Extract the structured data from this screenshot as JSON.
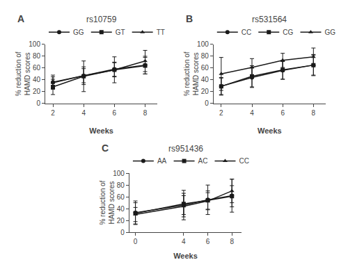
{
  "chart_data": [
    {
      "type": "line",
      "title": "rs10759",
      "annotations": [
        "A"
      ],
      "xlabel": "Weeks",
      "ylabel": "% reduction of\nHAMD scores",
      "x": [
        2,
        4,
        6,
        8
      ],
      "series": [
        {
          "name": "GG",
          "marker": "circle",
          "color": "#1a1a1a",
          "values": [
            36,
            47,
            58,
            65
          ],
          "yerr": [
            12,
            15,
            12,
            15
          ]
        },
        {
          "name": "GT",
          "marker": "square",
          "color": "#1a1a1a",
          "values": [
            28,
            46,
            57,
            64
          ],
          "yerr": [
            13,
            26,
            12,
            14
          ]
        },
        {
          "name": "TT",
          "marker": "triangle",
          "color": "#1a1a1a",
          "values": [
            35,
            47,
            57,
            72
          ],
          "yerr": [
            10,
            12,
            22,
            18
          ]
        }
      ],
      "xlim": [
        1.5,
        8.8
      ],
      "xticks": [
        2,
        4,
        6,
        8
      ],
      "ylim": [
        0,
        100
      ],
      "yticks": [
        0,
        20,
        40,
        60,
        80,
        100
      ],
      "grid": false,
      "legend": "upper left"
    },
    {
      "type": "line",
      "title": "rs531564",
      "annotations": [
        "B"
      ],
      "xlabel": "Weeks",
      "ylabel": "% reduction of\nHAMD scores",
      "x": [
        2,
        4,
        6,
        8
      ],
      "series": [
        {
          "name": "CC",
          "marker": "circle",
          "color": "#1a1a1a",
          "values": [
            29,
            44,
            56,
            65
          ],
          "yerr": [
            14,
            17,
            15,
            18
          ]
        },
        {
          "name": "CG",
          "marker": "square",
          "color": "#1a1a1a",
          "values": [
            29,
            46,
            57,
            65
          ],
          "yerr": [
            15,
            18,
            16,
            17
          ]
        },
        {
          "name": "GG",
          "marker": "triangle",
          "color": "#1a1a1a",
          "values": [
            50,
            61,
            73,
            79
          ],
          "yerr": [
            28,
            15,
            12,
            15
          ]
        }
      ],
      "xlim": [
        1.5,
        8.8
      ],
      "xticks": [
        2,
        4,
        6,
        8
      ],
      "ylim": [
        0,
        100
      ],
      "yticks": [
        0,
        20,
        40,
        60,
        80,
        100
      ],
      "grid": false,
      "legend": "upper left"
    },
    {
      "type": "line",
      "title": "rs951436",
      "annotations": [
        "C"
      ],
      "xlabel": "Weeks",
      "ylabel": "% reduction of\nHAMD scores",
      "x": [
        0,
        4,
        6,
        8
      ],
      "series": [
        {
          "name": "AA",
          "marker": "circle",
          "color": "#1a1a1a",
          "values": [
            33,
            46,
            55,
            62
          ],
          "yerr": [
            20,
            25,
            25,
            28
          ]
        },
        {
          "name": "AC",
          "marker": "square",
          "color": "#1a1a1a",
          "values": [
            32,
            48,
            54,
            61
          ],
          "yerr": [
            18,
            18,
            16,
            18
          ]
        },
        {
          "name": "CC",
          "marker": "triangle",
          "color": "#1a1a1a",
          "values": [
            30,
            44,
            53,
            70
          ],
          "yerr": [
            12,
            18,
            14,
            20
          ]
        }
      ],
      "xlim": [
        -0.5,
        8.8
      ],
      "xticks": [
        0,
        4,
        6,
        8
      ],
      "ylim": [
        0,
        100
      ],
      "yticks": [
        0,
        20,
        40,
        60,
        80,
        100
      ],
      "grid": false,
      "legend": "upper left"
    }
  ]
}
